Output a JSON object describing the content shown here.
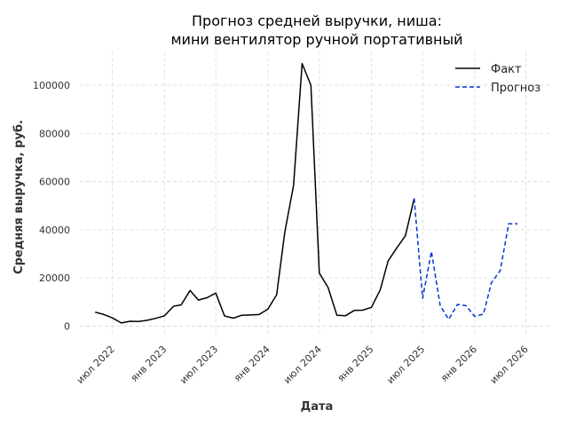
{
  "chart_data": {
    "type": "line",
    "title_line1": "Прогноз средней выручки, ниша:",
    "title_line2": "мини вентилятор ручной портативный",
    "xlabel": "Дата",
    "ylabel": "Средняя выручка, руб.",
    "x_ticks": [
      {
        "date": "2022-07-01",
        "label": "июл 2022"
      },
      {
        "date": "2023-01-01",
        "label": "янв 2023"
      },
      {
        "date": "2023-07-01",
        "label": "июл 2023"
      },
      {
        "date": "2024-01-01",
        "label": "янв 2024"
      },
      {
        "date": "2024-07-01",
        "label": "июл 2024"
      },
      {
        "date": "2025-01-01",
        "label": "янв 2025"
      },
      {
        "date": "2025-07-01",
        "label": "июл 2025"
      },
      {
        "date": "2026-01-01",
        "label": "янв 2026"
      },
      {
        "date": "2026-07-01",
        "label": "июл 2026"
      }
    ],
    "y_ticks": [
      0,
      20000,
      40000,
      60000,
      80000,
      100000
    ],
    "xlim": [
      "2022-03-08",
      "2026-10-01"
    ],
    "ylim": [
      -5000,
      114000
    ],
    "grid": true,
    "legend_position": "top-right",
    "series": [
      {
        "name": "Факт",
        "color": "#000000",
        "style": "solid",
        "points": [
          [
            "2022-05-01",
            5800
          ],
          [
            "2022-06-01",
            4800
          ],
          [
            "2022-07-01",
            3400
          ],
          [
            "2022-08-01",
            1300
          ],
          [
            "2022-09-01",
            2000
          ],
          [
            "2022-10-01",
            1900
          ],
          [
            "2022-11-01",
            2400
          ],
          [
            "2022-12-01",
            3200
          ],
          [
            "2023-01-01",
            4300
          ],
          [
            "2023-02-01",
            8200
          ],
          [
            "2023-03-01",
            8800
          ],
          [
            "2023-04-01",
            14800
          ],
          [
            "2023-05-01",
            10800
          ],
          [
            "2023-06-01",
            11800
          ],
          [
            "2023-07-01",
            13700
          ],
          [
            "2023-08-01",
            4200
          ],
          [
            "2023-09-01",
            3300
          ],
          [
            "2023-10-01",
            4500
          ],
          [
            "2023-11-01",
            4600
          ],
          [
            "2023-12-01",
            4800
          ],
          [
            "2024-01-01",
            7000
          ],
          [
            "2024-02-01",
            13000
          ],
          [
            "2024-03-01",
            39000
          ],
          [
            "2024-04-01",
            58500
          ],
          [
            "2024-05-01",
            109000
          ],
          [
            "2024-06-01",
            100000
          ],
          [
            "2024-07-01",
            22000
          ],
          [
            "2024-08-01",
            16000
          ],
          [
            "2024-09-01",
            4500
          ],
          [
            "2024-10-01",
            4300
          ],
          [
            "2024-11-01",
            6500
          ],
          [
            "2024-12-01",
            6600
          ],
          [
            "2025-01-01",
            7800
          ],
          [
            "2025-02-01",
            15000
          ],
          [
            "2025-03-01",
            27000
          ],
          [
            "2025-04-01",
            32500
          ],
          [
            "2025-05-01",
            37500
          ],
          [
            "2025-06-01",
            53000
          ]
        ]
      },
      {
        "name": "Прогноз",
        "color": "#0039cc",
        "style": "dashed",
        "points": [
          [
            "2025-06-01",
            53000
          ],
          [
            "2025-07-01",
            11500
          ],
          [
            "2025-08-01",
            31000
          ],
          [
            "2025-09-01",
            8500
          ],
          [
            "2025-10-01",
            2800
          ],
          [
            "2025-11-01",
            9000
          ],
          [
            "2025-12-01",
            8500
          ],
          [
            "2026-01-01",
            4000
          ],
          [
            "2026-02-01",
            5000
          ],
          [
            "2026-03-01",
            18000
          ],
          [
            "2026-04-01",
            23000
          ],
          [
            "2026-05-01",
            42500
          ],
          [
            "2026-06-01",
            42500
          ]
        ]
      }
    ]
  }
}
